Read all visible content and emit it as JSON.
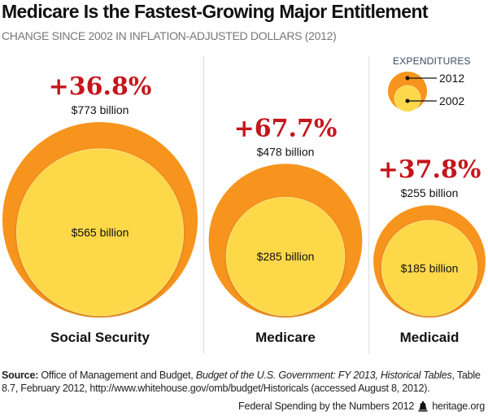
{
  "header": {
    "title": "Medicare Is the Fastest-Growing Major Entitlement",
    "subtitle": "CHANGE SINCE 2002 IN INFLATION-ADJUSTED DOLLARS (2012)"
  },
  "colors": {
    "outer_2012": "#f7941d",
    "inner_2002": "#fdd84a",
    "percent_red": "#c4161c",
    "divider": "#dddddd"
  },
  "chart_data": {
    "type": "bubble",
    "title": "Medicare Is the Fastest-Growing Major Entitlement",
    "subtitle": "CHANGE SINCE 2002 IN INFLATION-ADJUSTED DOLLARS (2012)",
    "units": "billion dollars (inflation-adjusted, 2012)",
    "legend": {
      "title": "EXPENDITURES",
      "position": "top-right",
      "entries": [
        {
          "label": "2012",
          "color": "#f7941d"
        },
        {
          "label": "2002",
          "color": "#fdd84a"
        }
      ]
    },
    "categories": [
      "Social Security",
      "Medicare",
      "Medicaid"
    ],
    "series": [
      {
        "name": "2012",
        "values": [
          773,
          478,
          255
        ],
        "labels": [
          "$773 billion",
          "$478 billion",
          "$255 billion"
        ]
      },
      {
        "name": "2002",
        "values": [
          565,
          285,
          185
        ],
        "labels": [
          "$565 billion",
          "$285 billion",
          "$185 billion"
        ]
      }
    ],
    "percent_change": [
      36.8,
      67.7,
      37.8
    ],
    "percent_labels": [
      "+36.8%",
      "+67.7%",
      "+37.8%"
    ]
  },
  "footer": {
    "source_label": "Source:",
    "source_text_1": " Office of Management and Budget, ",
    "source_italic": "Budget of the U.S. Government: FY 2013, Historical Tables",
    "source_text_2": ", Table 8.7, February 2012, http://www.whitehouse.gov/omb/budget/Historicals (accessed August 8, 2012).",
    "publication": "Federal Spending by the Numbers 2012",
    "site": "heritage.org",
    "icon": "liberty-bell-icon"
  }
}
